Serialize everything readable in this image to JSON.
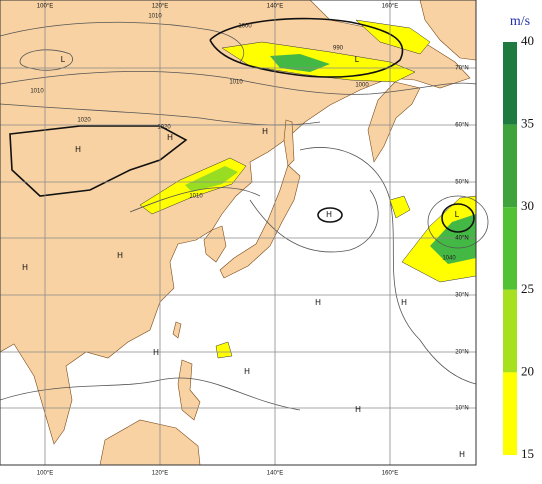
{
  "colorbar": {
    "unit": "m/s",
    "ticks": [
      40,
      35,
      30,
      25,
      20,
      15
    ]
  },
  "longitude_labels": [
    "100°E",
    "120°E",
    "140°E",
    "160°E"
  ],
  "latitude_labels": [
    "70°N",
    "60°N",
    "50°N",
    "40°N",
    "30°N",
    "20°N",
    "10°N"
  ],
  "isobar_labels": [
    "1010",
    "1000",
    "990",
    "1000",
    "1010",
    "1010",
    "1020",
    "1020",
    "1010",
    "1040"
  ],
  "pressure_centers": [
    "L",
    "L",
    "H",
    "H",
    "H",
    "H",
    "H",
    "H",
    "H",
    "H",
    "H",
    "H",
    "H",
    "H",
    "L"
  ]
}
